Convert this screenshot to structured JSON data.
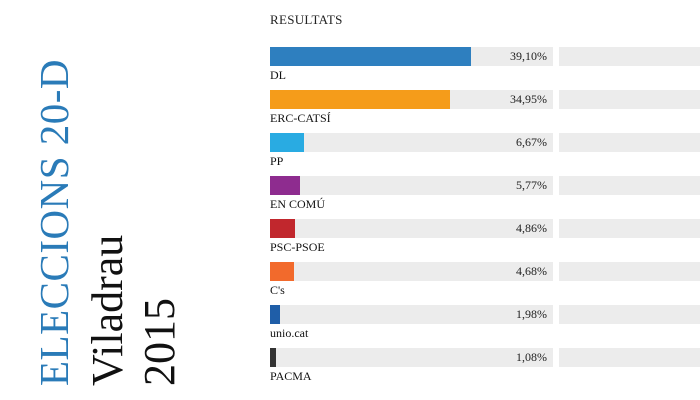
{
  "side_title": {
    "line1": "ELECCIONS 20-D",
    "line2": "Viladrau",
    "line3": "2015"
  },
  "results_title": "RESULTATS",
  "colors": {
    "accent_title": "#2a7bb8",
    "track": "#ececec"
  },
  "chart_data": {
    "type": "bar",
    "title": "RESULTATS",
    "orientation": "horizontal",
    "categories": [
      "DL",
      "ERC-CATSÍ",
      "PP",
      "EN COMÚ",
      "PSC-PSOE",
      "C's",
      "unio.cat",
      "PACMA"
    ],
    "values": [
      39.1,
      34.95,
      6.67,
      5.77,
      4.86,
      4.68,
      1.98,
      1.08
    ],
    "value_labels": [
      "39,10%",
      "34,95%",
      "6,67%",
      "5,77%",
      "4,86%",
      "4,68%",
      "1,98%",
      "1,08%"
    ],
    "bar_colors": [
      "#2e7fbf",
      "#f59c1a",
      "#29abe2",
      "#8e2c8f",
      "#c1272d",
      "#f26a2c",
      "#1f5ea8",
      "#333333"
    ],
    "xlim": [
      0,
      55
    ],
    "grid": false
  }
}
